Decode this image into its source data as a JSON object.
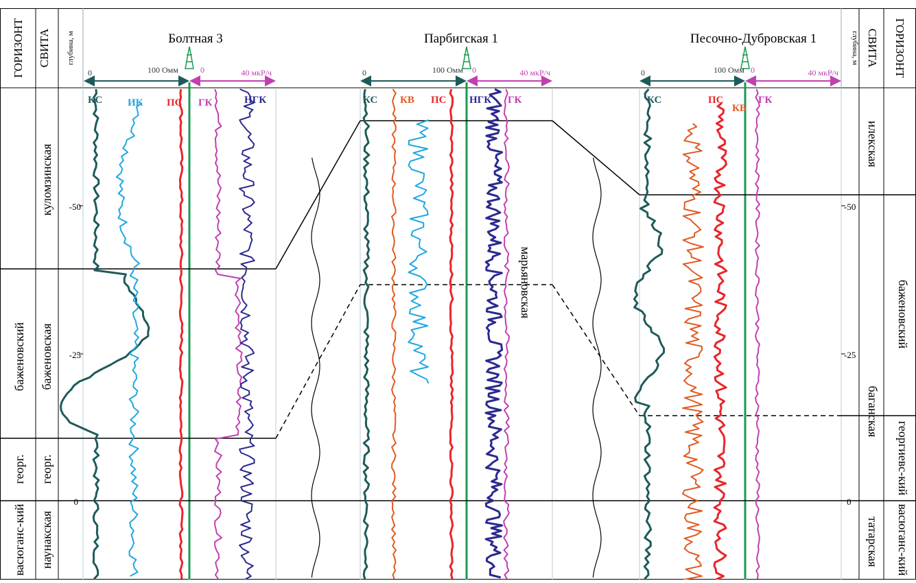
{
  "left_headers": {
    "horizon": "ГОРИЗОНТ",
    "suite": "СВИТА",
    "depth": "глубина, м"
  },
  "right_headers": {
    "horizon": "ГОРИЗОНТ",
    "suite": "СВИТА",
    "depth": "глубина, м"
  },
  "depth_ticks_left": [
    "-50",
    "-25",
    "0"
  ],
  "depth_ticks_right": [
    "-50",
    "-25",
    "0"
  ],
  "wells": [
    {
      "name": "Болтная 3",
      "scale_left": {
        "min": "0",
        "max": "100 Омм"
      },
      "scale_right": {
        "min": "0",
        "max": "40 мкР/ч"
      },
      "curves_left": [
        "КС",
        "ИК",
        "ПС"
      ],
      "curves_right": [
        "ГК",
        "НГК"
      ]
    },
    {
      "name": "Парбигская 1",
      "scale_left": {
        "min": "0",
        "max": "100 Омм"
      },
      "scale_right": {
        "min": "0",
        "max": "40 мкР/ч"
      },
      "curves_left": [
        "КС",
        "КВ",
        "ПС"
      ],
      "curves_right": [
        "НГК",
        "ГК"
      ]
    },
    {
      "name": "Песочно-Дубровская 1",
      "scale_left": {
        "min": "0",
        "max": "100 Омм"
      },
      "scale_right": {
        "min": "0",
        "max": "40 мкР/ч"
      },
      "curves_left": [
        "КС",
        "ПС",
        "КВ"
      ],
      "curves_right": [
        "ГК"
      ]
    }
  ],
  "left_horizons": [
    "васюганс-кий",
    "георг.",
    "баженовский"
  ],
  "left_suites": [
    "наунакская",
    "георг.",
    "баженовская",
    "куломзинская"
  ],
  "right_horizons": [
    "баженовский",
    "георгиевс-кий",
    "васюганс-кий"
  ],
  "right_suites": [
    "илекская",
    "баганская",
    "татарская"
  ],
  "center_label": "марьяновская",
  "colors": {
    "ks": "#1f5a5a",
    "ik": "#1ea8e0",
    "ps": "#e8252a",
    "gk": "#c040b0",
    "ngk": "#2a2a90",
    "kv": "#e05a20",
    "well_axis": "#1a9a50",
    "ohm_arrow": "#1f5a5a",
    "mkr_arrow": "#c040b0"
  }
}
